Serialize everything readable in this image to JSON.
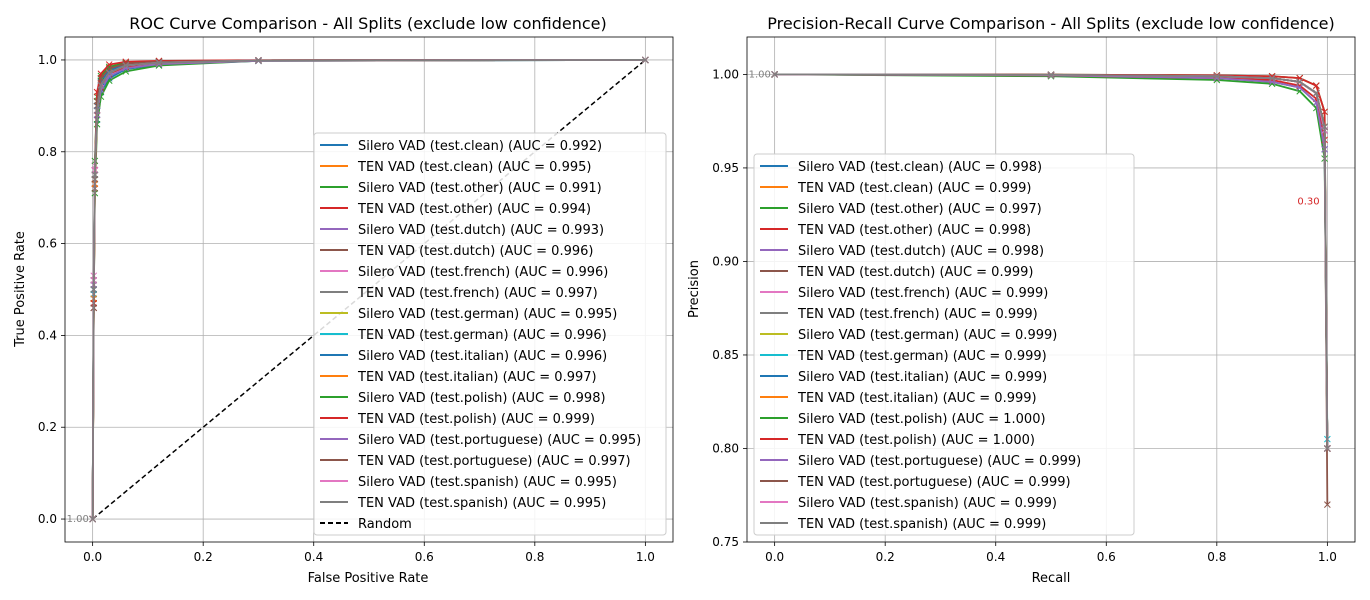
{
  "colors": {
    "palette": [
      "#1f77b4",
      "#ff7f0e",
      "#2ca02c",
      "#d62728",
      "#9467bd",
      "#8c564b",
      "#e377c2",
      "#7f7f7f",
      "#bcbd22",
      "#17becf"
    ],
    "random_line": "#000000",
    "grid": "#b0b0b0"
  },
  "chart_data": [
    {
      "type": "line",
      "title": "ROC Curve Comparison - All Splits (exclude low confidence)",
      "xlabel": "False Positive Rate",
      "ylabel": "True Positive Rate",
      "xlim": [
        -0.05,
        1.05
      ],
      "ylim": [
        -0.05,
        1.05
      ],
      "xticks": [
        "0.0",
        "0.2",
        "0.4",
        "0.6",
        "0.8",
        "1.0"
      ],
      "yticks": [
        "0.0",
        "0.2",
        "0.4",
        "0.6",
        "0.8",
        "1.0"
      ],
      "grid": true,
      "legend_position": "lower-right",
      "random_label": "Random",
      "point_labels_start": "1.00",
      "series": [
        {
          "name": "Silero VAD (test.clean) (AUC = 0.992)",
          "x": [
            0,
            0.002,
            0.004,
            0.008,
            0.015,
            0.03,
            0.06,
            0.12,
            0.3,
            1.0
          ],
          "y": [
            0,
            0.5,
            0.75,
            0.87,
            0.93,
            0.96,
            0.98,
            0.99,
            0.998,
            1.0
          ]
        },
        {
          "name": "TEN VAD (test.clean) (AUC = 0.995)",
          "x": [
            0,
            0.002,
            0.004,
            0.008,
            0.015,
            0.03,
            0.06,
            0.12,
            0.3,
            1.0
          ],
          "y": [
            0,
            0.48,
            0.74,
            0.89,
            0.95,
            0.975,
            0.99,
            0.995,
            0.999,
            1.0
          ]
        },
        {
          "name": "Silero VAD (test.other) (AUC = 0.991)",
          "x": [
            0,
            0.002,
            0.004,
            0.008,
            0.015,
            0.03,
            0.06,
            0.12,
            0.3,
            1.0
          ],
          "y": [
            0,
            0.47,
            0.71,
            0.86,
            0.92,
            0.955,
            0.975,
            0.988,
            0.998,
            1.0
          ]
        },
        {
          "name": "TEN VAD (test.other) (AUC = 0.994)",
          "x": [
            0,
            0.002,
            0.004,
            0.008,
            0.015,
            0.03,
            0.06,
            0.12,
            0.3,
            1.0
          ],
          "y": [
            0,
            0.49,
            0.73,
            0.88,
            0.94,
            0.97,
            0.985,
            0.993,
            0.999,
            1.0
          ]
        },
        {
          "name": "Silero VAD (test.dutch) (AUC = 0.993)",
          "x": [
            0,
            0.002,
            0.004,
            0.008,
            0.015,
            0.03,
            0.06,
            0.12,
            0.3,
            1.0
          ],
          "y": [
            0,
            0.52,
            0.76,
            0.88,
            0.935,
            0.965,
            0.982,
            0.991,
            0.998,
            1.0
          ]
        },
        {
          "name": "TEN VAD (test.dutch) (AUC = 0.996)",
          "x": [
            0,
            0.002,
            0.004,
            0.008,
            0.015,
            0.03,
            0.06,
            0.12,
            0.3,
            1.0
          ],
          "y": [
            0,
            0.46,
            0.72,
            0.9,
            0.955,
            0.978,
            0.99,
            0.995,
            0.999,
            1.0
          ]
        },
        {
          "name": "Silero VAD (test.french) (AUC = 0.996)",
          "x": [
            0,
            0.002,
            0.004,
            0.008,
            0.015,
            0.03,
            0.06,
            0.12,
            0.3,
            1.0
          ],
          "y": [
            0,
            0.53,
            0.77,
            0.9,
            0.95,
            0.976,
            0.99,
            0.995,
            0.999,
            1.0
          ]
        },
        {
          "name": "TEN VAD (test.french) (AUC = 0.997)",
          "x": [
            0,
            0.002,
            0.004,
            0.008,
            0.015,
            0.03,
            0.06,
            0.12,
            0.3,
            1.0
          ],
          "y": [
            0,
            0.5,
            0.75,
            0.91,
            0.96,
            0.98,
            0.992,
            0.996,
            0.999,
            1.0
          ]
        },
        {
          "name": "Silero VAD (test.german) (AUC = 0.995)",
          "x": [
            0,
            0.002,
            0.004,
            0.008,
            0.015,
            0.03,
            0.06,
            0.12,
            0.3,
            1.0
          ],
          "y": [
            0,
            0.51,
            0.75,
            0.89,
            0.945,
            0.972,
            0.988,
            0.994,
            0.999,
            1.0
          ]
        },
        {
          "name": "TEN VAD (test.german) (AUC = 0.996)",
          "x": [
            0,
            0.002,
            0.004,
            0.008,
            0.015,
            0.03,
            0.06,
            0.12,
            0.3,
            1.0
          ],
          "y": [
            0,
            0.49,
            0.74,
            0.9,
            0.955,
            0.978,
            0.99,
            0.995,
            0.999,
            1.0
          ]
        },
        {
          "name": "Silero VAD (test.italian) (AUC = 0.996)",
          "x": [
            0,
            0.002,
            0.004,
            0.008,
            0.015,
            0.03,
            0.06,
            0.12,
            0.3,
            1.0
          ],
          "y": [
            0,
            0.5,
            0.76,
            0.9,
            0.952,
            0.977,
            0.99,
            0.995,
            0.999,
            1.0
          ]
        },
        {
          "name": "TEN VAD (test.italian) (AUC = 0.997)",
          "x": [
            0,
            0.002,
            0.004,
            0.008,
            0.015,
            0.03,
            0.06,
            0.12,
            0.3,
            1.0
          ],
          "y": [
            0,
            0.48,
            0.73,
            0.91,
            0.96,
            0.982,
            0.993,
            0.996,
            0.999,
            1.0
          ]
        },
        {
          "name": "Silero VAD (test.polish) (AUC = 0.998)",
          "x": [
            0,
            0.002,
            0.004,
            0.008,
            0.015,
            0.03,
            0.06,
            0.12,
            0.3,
            1.0
          ],
          "y": [
            0,
            0.52,
            0.78,
            0.92,
            0.965,
            0.985,
            0.994,
            0.997,
            0.999,
            1.0
          ]
        },
        {
          "name": "TEN VAD (test.polish) (AUC = 0.999)",
          "x": [
            0,
            0.002,
            0.004,
            0.008,
            0.015,
            0.03,
            0.06,
            0.12,
            0.3,
            1.0
          ],
          "y": [
            0,
            0.47,
            0.76,
            0.93,
            0.97,
            0.99,
            0.996,
            0.998,
            0.9995,
            1.0
          ]
        },
        {
          "name": "Silero VAD (test.portuguese) (AUC = 0.995)",
          "x": [
            0,
            0.002,
            0.004,
            0.008,
            0.015,
            0.03,
            0.06,
            0.12,
            0.3,
            1.0
          ],
          "y": [
            0,
            0.51,
            0.75,
            0.89,
            0.945,
            0.972,
            0.988,
            0.994,
            0.999,
            1.0
          ]
        },
        {
          "name": "TEN VAD (test.portuguese) (AUC = 0.997)",
          "x": [
            0,
            0.002,
            0.004,
            0.008,
            0.015,
            0.03,
            0.06,
            0.12,
            0.3,
            1.0
          ],
          "y": [
            0,
            0.46,
            0.74,
            0.91,
            0.96,
            0.981,
            0.992,
            0.996,
            0.999,
            1.0
          ]
        },
        {
          "name": "Silero VAD (test.spanish) (AUC = 0.995)",
          "x": [
            0,
            0.002,
            0.004,
            0.008,
            0.015,
            0.03,
            0.06,
            0.12,
            0.3,
            1.0
          ],
          "y": [
            0,
            0.52,
            0.76,
            0.89,
            0.945,
            0.972,
            0.988,
            0.994,
            0.999,
            1.0
          ]
        },
        {
          "name": "TEN VAD (test.spanish) (AUC = 0.995)",
          "x": [
            0,
            0.002,
            0.004,
            0.008,
            0.015,
            0.03,
            0.06,
            0.12,
            0.3,
            1.0
          ],
          "y": [
            0,
            0.5,
            0.75,
            0.89,
            0.945,
            0.972,
            0.988,
            0.994,
            0.999,
            1.0
          ]
        }
      ]
    },
    {
      "type": "line",
      "title": "Precision-Recall Curve Comparison - All Splits (exclude low confidence)",
      "xlabel": "Recall",
      "ylabel": "Precision",
      "xlim": [
        -0.05,
        1.05
      ],
      "ylim": [
        0.75,
        1.02
      ],
      "xticks": [
        "0.0",
        "0.2",
        "0.4",
        "0.6",
        "0.8",
        "1.0"
      ],
      "yticks": [
        "0.75",
        "0.80",
        "0.85",
        "0.90",
        "0.95",
        "1.00"
      ],
      "grid": true,
      "legend_position": "center-left",
      "point_labels_start": "1.00",
      "point_labels_end": "0.30",
      "series": [
        {
          "name": "Silero VAD (test.clean) (AUC = 0.998)",
          "x": [
            0,
            0.5,
            0.8,
            0.9,
            0.95,
            0.98,
            0.995,
            1.0
          ],
          "y": [
            1.0,
            0.9995,
            0.998,
            0.996,
            0.993,
            0.985,
            0.96,
            0.8
          ]
        },
        {
          "name": "TEN VAD (test.clean) (AUC = 0.999)",
          "x": [
            0,
            0.5,
            0.8,
            0.9,
            0.95,
            0.98,
            0.995,
            1.0
          ],
          "y": [
            1.0,
            0.9997,
            0.999,
            0.998,
            0.996,
            0.99,
            0.97,
            0.8
          ]
        },
        {
          "name": "Silero VAD (test.other) (AUC = 0.997)",
          "x": [
            0,
            0.5,
            0.8,
            0.9,
            0.95,
            0.98,
            0.995,
            1.0
          ],
          "y": [
            1.0,
            0.999,
            0.997,
            0.995,
            0.991,
            0.982,
            0.955,
            0.8
          ]
        },
        {
          "name": "TEN VAD (test.other) (AUC = 0.998)",
          "x": [
            0,
            0.5,
            0.8,
            0.9,
            0.95,
            0.98,
            0.995,
            1.0
          ],
          "y": [
            1.0,
            0.9995,
            0.998,
            0.997,
            0.994,
            0.987,
            0.965,
            0.8
          ]
        },
        {
          "name": "Silero VAD (test.dutch) (AUC = 0.998)",
          "x": [
            0,
            0.5,
            0.8,
            0.9,
            0.95,
            0.98,
            0.995,
            1.0
          ],
          "y": [
            1.0,
            0.9995,
            0.998,
            0.996,
            0.993,
            0.985,
            0.96,
            0.8
          ]
        },
        {
          "name": "TEN VAD (test.dutch) (AUC = 0.999)",
          "x": [
            0,
            0.5,
            0.8,
            0.9,
            0.95,
            0.98,
            0.995,
            1.0
          ],
          "y": [
            1.0,
            0.9997,
            0.999,
            0.998,
            0.996,
            0.99,
            0.97,
            0.77
          ]
        },
        {
          "name": "Silero VAD (test.french) (AUC = 0.999)",
          "x": [
            0,
            0.5,
            0.8,
            0.9,
            0.95,
            0.98,
            0.995,
            1.0
          ],
          "y": [
            1.0,
            0.9997,
            0.999,
            0.998,
            0.996,
            0.99,
            0.97,
            0.8
          ]
        },
        {
          "name": "TEN VAD (test.french) (AUC = 0.999)",
          "x": [
            0,
            0.5,
            0.8,
            0.9,
            0.95,
            0.98,
            0.995,
            1.0
          ],
          "y": [
            1.0,
            0.9998,
            0.999,
            0.998,
            0.996,
            0.99,
            0.972,
            0.8
          ]
        },
        {
          "name": "Silero VAD (test.german) (AUC = 0.999)",
          "x": [
            0,
            0.5,
            0.8,
            0.9,
            0.95,
            0.98,
            0.995,
            1.0
          ],
          "y": [
            1.0,
            0.9997,
            0.999,
            0.998,
            0.996,
            0.99,
            0.97,
            0.8
          ]
        },
        {
          "name": "TEN VAD (test.german) (AUC = 0.999)",
          "x": [
            0,
            0.5,
            0.8,
            0.9,
            0.95,
            0.98,
            0.995,
            1.0
          ],
          "y": [
            1.0,
            0.9998,
            0.999,
            0.998,
            0.996,
            0.99,
            0.972,
            0.805
          ]
        },
        {
          "name": "Silero VAD (test.italian) (AUC = 0.999)",
          "x": [
            0,
            0.5,
            0.8,
            0.9,
            0.95,
            0.98,
            0.995,
            1.0
          ],
          "y": [
            1.0,
            0.9997,
            0.999,
            0.998,
            0.996,
            0.99,
            0.97,
            0.8
          ]
        },
        {
          "name": "TEN VAD (test.italian) (AUC = 0.999)",
          "x": [
            0,
            0.5,
            0.8,
            0.9,
            0.95,
            0.98,
            0.995,
            1.0
          ],
          "y": [
            1.0,
            0.9998,
            0.999,
            0.998,
            0.996,
            0.99,
            0.972,
            0.8
          ]
        },
        {
          "name": "Silero VAD (test.polish) (AUC = 1.000)",
          "x": [
            0,
            0.5,
            0.8,
            0.9,
            0.95,
            0.98,
            0.995,
            1.0
          ],
          "y": [
            1.0,
            0.9999,
            0.9995,
            0.999,
            0.998,
            0.994,
            0.98,
            0.8
          ]
        },
        {
          "name": "TEN VAD (test.polish) (AUC = 1.000)",
          "x": [
            0,
            0.5,
            0.8,
            0.9,
            0.95,
            0.98,
            0.995,
            1.0
          ],
          "y": [
            1.0,
            0.9999,
            0.9995,
            0.999,
            0.998,
            0.994,
            0.98,
            0.8
          ]
        },
        {
          "name": "Silero VAD (test.portuguese) (AUC = 0.999)",
          "x": [
            0,
            0.5,
            0.8,
            0.9,
            0.95,
            0.98,
            0.995,
            1.0
          ],
          "y": [
            1.0,
            0.9997,
            0.999,
            0.998,
            0.996,
            0.99,
            0.97,
            0.8
          ]
        },
        {
          "name": "TEN VAD (test.portuguese) (AUC = 0.999)",
          "x": [
            0,
            0.5,
            0.8,
            0.9,
            0.95,
            0.98,
            0.995,
            1.0
          ],
          "y": [
            1.0,
            0.9998,
            0.999,
            0.998,
            0.996,
            0.99,
            0.972,
            0.8
          ]
        },
        {
          "name": "Silero VAD (test.spanish) (AUC = 0.999)",
          "x": [
            0,
            0.5,
            0.8,
            0.9,
            0.95,
            0.98,
            0.995,
            1.0
          ],
          "y": [
            1.0,
            0.9997,
            0.999,
            0.998,
            0.996,
            0.99,
            0.97,
            0.8
          ]
        },
        {
          "name": "TEN VAD (test.spanish) (AUC = 0.999)",
          "x": [
            0,
            0.5,
            0.8,
            0.9,
            0.95,
            0.98,
            0.995,
            1.0
          ],
          "y": [
            1.0,
            0.9998,
            0.999,
            0.998,
            0.996,
            0.99,
            0.972,
            0.8
          ]
        }
      ]
    }
  ]
}
